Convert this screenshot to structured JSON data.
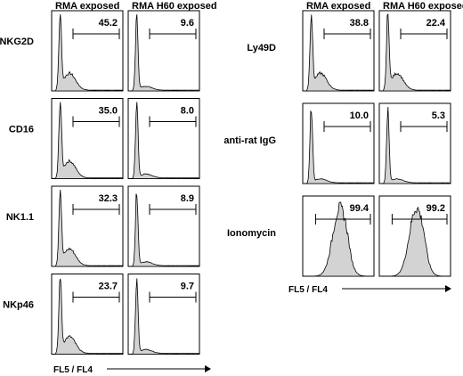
{
  "chart_data": {
    "type": "histogram-grid",
    "column_titles": [
      "RMA exposed",
      "RMA H60 exposed"
    ],
    "x_axis_label": "FL5 / FL4",
    "left_block": {
      "rows": [
        {
          "label": "NKG2D",
          "values": [
            "45.2",
            "9.6"
          ],
          "profile": [
            "tail",
            "narrow"
          ]
        },
        {
          "label": "CD16",
          "values": [
            "35.0",
            "8.0"
          ],
          "profile": [
            "tail",
            "narrow"
          ]
        },
        {
          "label": "NK1.1",
          "values": [
            "32.3",
            "8.9"
          ],
          "profile": [
            "tail",
            "narrow"
          ]
        },
        {
          "label": "NKp46",
          "values": [
            "23.7",
            "9.7"
          ],
          "profile": [
            "tail",
            "narrow"
          ]
        }
      ]
    },
    "right_block": {
      "rows": [
        {
          "label": "Ly49D",
          "values": [
            "38.8",
            "22.4"
          ],
          "profile": [
            "tail",
            "tail"
          ]
        },
        {
          "label": "anti-rat IgG",
          "values": [
            "10.0",
            "5.3"
          ],
          "profile": [
            "narrow",
            "narrow"
          ]
        },
        {
          "label": "Ionomycin",
          "values": [
            "99.4",
            "99.2"
          ],
          "profile": [
            "shifted",
            "shifted"
          ]
        }
      ]
    }
  }
}
